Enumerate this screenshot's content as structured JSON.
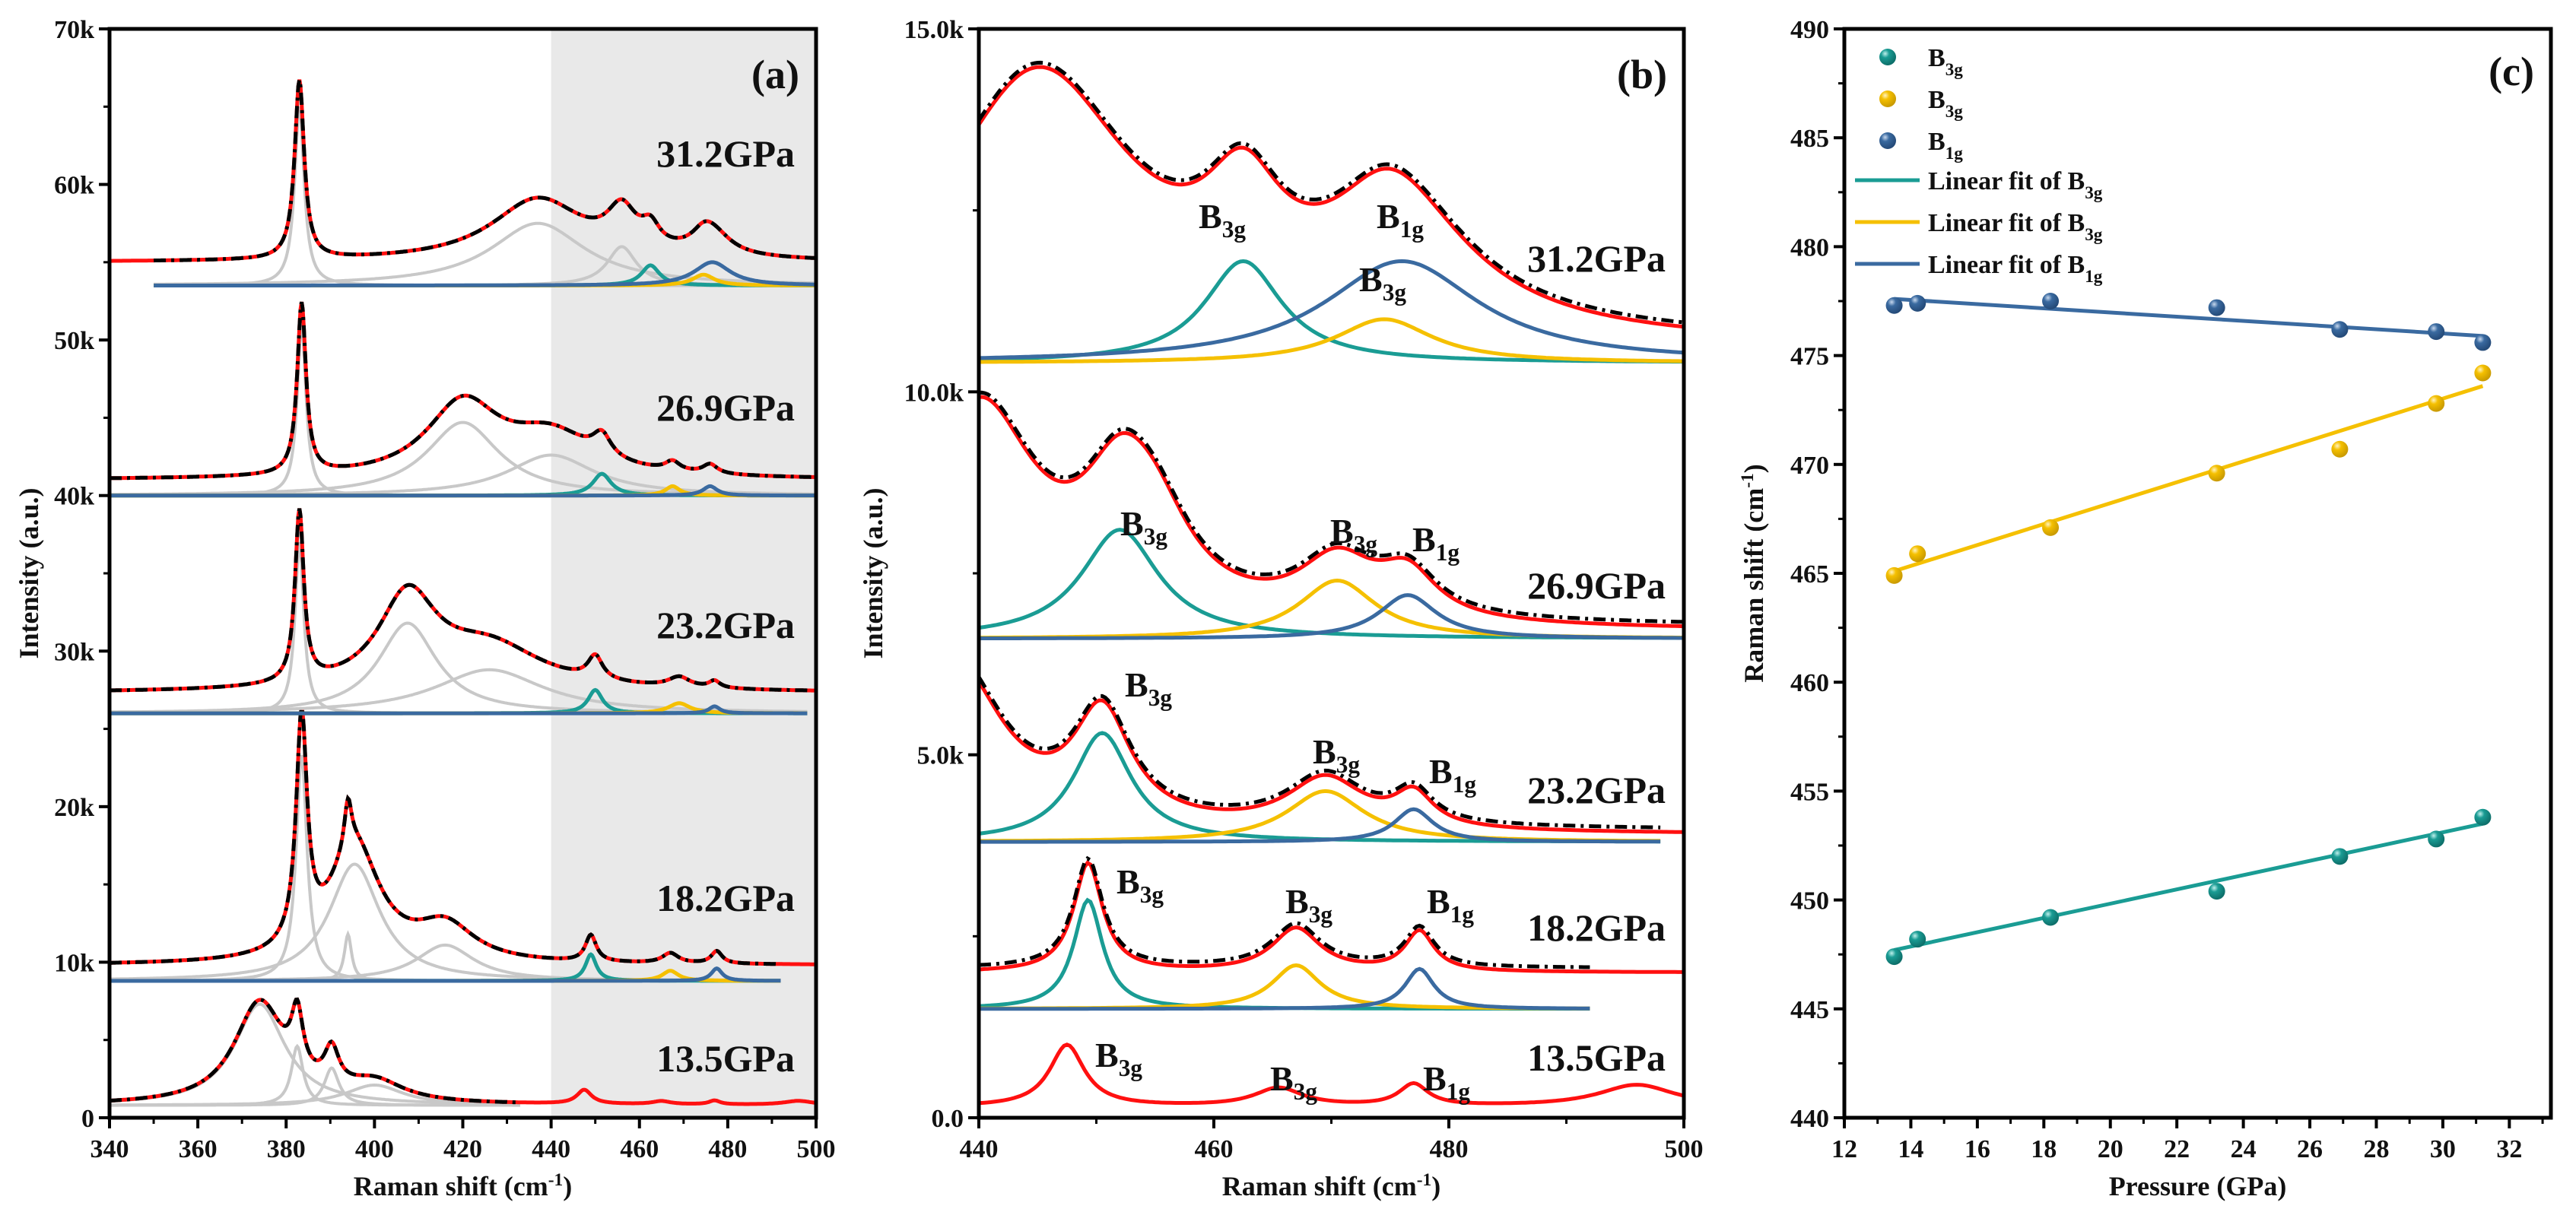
{
  "colors": {
    "raman": "#c8c8c8",
    "B3g-1": "#1a9c94",
    "B3g-2": "#f5c000",
    "B1g": "#3a6aa0",
    "data": "#ff1010",
    "fit": "#000000",
    "shade": "#e9e9e9"
  },
  "chart_data": [
    {
      "id": "a",
      "type": "line",
      "panel_label": "(a)",
      "xlabel": "Raman shift (cm",
      "xlabel_sup": "-1",
      "xlabel_end": ")",
      "ylabel": "Intensity (a.u.)",
      "xlim": [
        340,
        500
      ],
      "ylim": [
        0,
        70000
      ],
      "xticks": [
        340,
        360,
        380,
        400,
        420,
        440,
        460,
        480,
        500
      ],
      "xtick_labels": [
        "340",
        "360",
        "380",
        "400",
        "420",
        "440",
        "460",
        "480",
        "500"
      ],
      "yticks": [
        0,
        10000,
        20000,
        30000,
        40000,
        50000,
        60000,
        70000
      ],
      "ytick_labels": [
        "0",
        "10k",
        "20k",
        "30k",
        "40k",
        "50k",
        "60k",
        "70k"
      ],
      "shaded_region": [
        440,
        500
      ],
      "spectra": [
        {
          "pressure": "13.5GPa",
          "baseline": 800,
          "offset": 0,
          "fit_range": [
            340,
            433
          ],
          "peaks": [
            {
              "c": 374,
              "a": 6500,
              "w": 7,
              "mode": "raman"
            },
            {
              "c": 382.5,
              "a": 3800,
              "w": 1.6,
              "mode": "raman"
            },
            {
              "c": 390.3,
              "a": 2400,
              "w": 2,
              "mode": "raman"
            },
            {
              "c": 400,
              "a": 1300,
              "w": 8,
              "mode": "raman"
            },
            {
              "c": 447.5,
              "a": 900,
              "w": 2,
              "mode": "hidden"
            },
            {
              "c": 465,
              "a": 200,
              "w": 2.5,
              "mode": "hidden"
            },
            {
              "c": 477,
              "a": 250,
              "w": 1.5,
              "mode": "hidden"
            },
            {
              "c": 496,
              "a": 250,
              "w": 4,
              "mode": "hidden"
            }
          ]
        },
        {
          "pressure": "18.2GPa",
          "baseline": 8800,
          "offset": 1000,
          "fit_range": [
            340,
            492
          ],
          "peaks": [
            {
              "c": 383.5,
              "a": 14500,
              "w": 1.5,
              "mode": "raman"
            },
            {
              "c": 394,
              "a": 3000,
              "w": 1,
              "mode": "raman"
            },
            {
              "c": 395.5,
              "a": 7500,
              "w": 7,
              "mode": "raman"
            },
            {
              "c": 416,
              "a": 2300,
              "w": 8,
              "mode": "raman"
            },
            {
              "c": 449,
              "a": 1700,
              "w": 1.5,
              "mode": "B3g-1"
            },
            {
              "c": 467,
              "a": 650,
              "w": 2.2,
              "mode": "B3g-2"
            },
            {
              "c": 477.5,
              "a": 800,
              "w": 1.5,
              "mode": "B1g"
            }
          ]
        },
        {
          "pressure": "23.2GPa",
          "baseline": 26000,
          "offset": 1300,
          "fit_range": [
            340,
            498
          ],
          "peaks": [
            {
              "c": 383,
              "a": 11000,
              "w": 1.2,
              "mode": "raman"
            },
            {
              "c": 407.5,
              "a": 5800,
              "w": 8,
              "mode": "raman"
            },
            {
              "c": 426,
              "a": 2800,
              "w": 15,
              "mode": "raman"
            },
            {
              "c": 450,
              "a": 1500,
              "w": 2,
              "mode": "B3g-1"
            },
            {
              "c": 469,
              "a": 650,
              "w": 3,
              "mode": "B3g-2"
            },
            {
              "c": 477,
              "a": 450,
              "w": 1.5,
              "mode": "B1g"
            }
          ]
        },
        {
          "pressure": "26.9GPa",
          "baseline": 40000,
          "offset": 1000,
          "fit_range": [
            340,
            500
          ],
          "peaks": [
            {
              "c": 383.5,
              "a": 11000,
              "w": 1.2,
              "mode": "raman"
            },
            {
              "c": 420,
              "a": 4700,
              "w": 10,
              "mode": "raman"
            },
            {
              "c": 440,
              "a": 2600,
              "w": 12,
              "mode": "raman"
            },
            {
              "c": 451.5,
              "a": 1400,
              "w": 2.5,
              "mode": "B3g-1"
            },
            {
              "c": 467.5,
              "a": 600,
              "w": 2,
              "mode": "B3g-2"
            },
            {
              "c": 476,
              "a": 600,
              "w": 2,
              "mode": "B1g"
            }
          ]
        },
        {
          "pressure": "31.2GPa",
          "baseline": 53500,
          "offset": 1500,
          "fit_range": [
            350,
            500
          ],
          "peaks": [
            {
              "c": 383,
              "a": 11500,
              "w": 1.3,
              "mode": "raman"
            },
            {
              "c": 437,
              "a": 4000,
              "w": 13,
              "mode": "raman"
            },
            {
              "c": 456,
              "a": 2500,
              "w": 4,
              "mode": "raman"
            },
            {
              "c": 462.5,
              "a": 1300,
              "w": 2.5,
              "mode": "B3g-1"
            },
            {
              "c": 474.5,
              "a": 700,
              "w": 3,
              "mode": "B3g-2"
            },
            {
              "c": 476.5,
              "a": 1500,
              "w": 5,
              "mode": "B1g"
            }
          ]
        }
      ]
    },
    {
      "id": "b",
      "type": "line",
      "panel_label": "(b)",
      "xlabel": "Raman shift (cm",
      "xlabel_sup": "-1",
      "xlabel_end": ")",
      "ylabel": "Intensity (a.u.)",
      "xlim": [
        440,
        500
      ],
      "ylim": [
        0,
        15000
      ],
      "xticks": [
        440,
        460,
        480,
        500
      ],
      "xtick_labels": [
        "440",
        "460",
        "480",
        "500"
      ],
      "yticks": [
        0,
        5000,
        10000,
        15000
      ],
      "ytick_labels": [
        "0.0",
        "5.0k",
        "10.0k",
        "15.0k"
      ],
      "spectra": [
        {
          "pressure": "13.5GPa",
          "baseline": 150,
          "offset": 0,
          "fit_range": null,
          "peaks": [
            {
              "c": 447.5,
              "a": 850,
              "w": 1.8,
              "mode": "hidden"
            },
            {
              "c": 465.5,
              "a": 250,
              "w": 2.5,
              "mode": "hidden"
            },
            {
              "c": 477,
              "a": 300,
              "w": 1.5,
              "mode": "hidden"
            },
            {
              "c": 496,
              "a": 300,
              "w": 4,
              "mode": "hidden"
            }
          ],
          "labels": [
            {
              "main": "B",
              "sub": "3g"
            },
            {
              "main": "B",
              "sub": "3g"
            },
            {
              "main": "B",
              "sub": "1g"
            }
          ]
        },
        {
          "pressure": "18.2GPa",
          "baseline": 1500,
          "offset": 500,
          "fit_range": [
            440,
            492
          ],
          "peaks": [
            {
              "c": 449.3,
              "a": 1500,
              "w": 1.5,
              "mode": "B3g-1"
            },
            {
              "c": 467,
              "a": 600,
              "w": 2.5,
              "mode": "B3g-2"
            },
            {
              "c": 477.5,
              "a": 550,
              "w": 1.5,
              "mode": "B1g"
            }
          ],
          "labels": [
            {
              "main": "B",
              "sub": "3g"
            },
            {
              "main": "B",
              "sub": "3g"
            },
            {
              "main": "B",
              "sub": "1g"
            }
          ]
        },
        {
          "pressure": "23.2GPa",
          "baseline": 3800,
          "offset": 100,
          "fit_range": [
            440,
            498
          ],
          "peaks": [
            {
              "c": 450.5,
              "a": 1500,
              "w": 3,
              "mode": "B3g-1"
            },
            {
              "c": 469.5,
              "a": 700,
              "w": 4,
              "mode": "B3g-2"
            },
            {
              "c": 477,
              "a": 450,
              "w": 2,
              "mode": "B1g"
            },
            {
              "c": 438,
              "a": 2300,
              "w": 5,
              "mode": "hidden"
            }
          ],
          "labels": [
            {
              "main": "B",
              "sub": "3g"
            },
            {
              "main": "B",
              "sub": "3g"
            },
            {
              "main": "B",
              "sub": "1g"
            }
          ]
        },
        {
          "pressure": "26.9GPa",
          "baseline": 6600,
          "offset": 100,
          "fit_range": [
            440,
            500
          ],
          "peaks": [
            {
              "c": 452,
              "a": 1500,
              "w": 4,
              "mode": "B3g-1"
            },
            {
              "c": 470.5,
              "a": 800,
              "w": 4,
              "mode": "B3g-2"
            },
            {
              "c": 476.5,
              "a": 600,
              "w": 3,
              "mode": "B1g"
            },
            {
              "c": 440,
              "a": 3000,
              "w": 6,
              "mode": "hidden"
            },
            {
              "c": 455,
              "a": 900,
              "w": 4,
              "mode": "hidden"
            }
          ],
          "labels": [
            {
              "main": "B",
              "sub": "3g"
            },
            {
              "main": "B",
              "sub": "3g"
            },
            {
              "main": "B",
              "sub": "1g"
            }
          ]
        },
        {
          "pressure": "31.2GPa",
          "baseline": 10400,
          "offset": 200,
          "fit_range": [
            440,
            500
          ],
          "peaks": [
            {
              "c": 462.5,
              "a": 1400,
              "w": 4,
              "mode": "B3g-1"
            },
            {
              "c": 474.5,
              "a": 600,
              "w": 5,
              "mode": "B3g-2"
            },
            {
              "c": 476,
              "a": 1400,
              "w": 8,
              "mode": "B1g"
            },
            {
              "c": 445,
              "a": 3700,
              "w": 10,
              "mode": "hidden"
            }
          ],
          "labels": [
            {
              "main": "B",
              "sub": "3g"
            },
            {
              "main": "B",
              "sub": "1g"
            },
            {
              "main": "B",
              "sub": "3g"
            }
          ]
        }
      ]
    },
    {
      "id": "c",
      "type": "scatter",
      "panel_label": "(c)",
      "xlabel": "Pressure (GPa)",
      "ylabel": "Raman shift (cm",
      "ylabel_sup": "-1",
      "ylabel_end": ")",
      "xlim": [
        12,
        33.25
      ],
      "ylim": [
        440,
        490
      ],
      "xticks": [
        12,
        14,
        16,
        18,
        20,
        22,
        24,
        26,
        28,
        30,
        32
      ],
      "xtick_labels": [
        "12",
        "14",
        "16",
        "18",
        "20",
        "22",
        "24",
        "26",
        "28",
        "30",
        "32"
      ],
      "yticks": [
        440,
        445,
        450,
        455,
        460,
        465,
        470,
        475,
        480,
        485,
        490
      ],
      "ytick_labels": [
        "440",
        "445",
        "450",
        "455",
        "460",
        "465",
        "470",
        "475",
        "480",
        "485",
        "490"
      ],
      "x": [
        13.5,
        14.2,
        18.2,
        23.2,
        26.9,
        29.8,
        31.2
      ],
      "series": [
        {
          "name": "B",
          "sub": "3g",
          "mode": "B3g-1",
          "values": [
            447.4,
            448.2,
            449.2,
            450.4,
            452.0,
            452.8,
            453.8
          ],
          "fit": [
            447.7,
            453.5
          ]
        },
        {
          "name": "B",
          "sub": "3g",
          "mode": "B3g-2",
          "values": [
            464.9,
            465.9,
            467.1,
            469.6,
            470.7,
            472.8,
            474.2
          ],
          "fit": [
            465.1,
            473.6
          ]
        },
        {
          "name": "B",
          "sub": "1g",
          "mode": "B1g",
          "values": [
            477.3,
            477.4,
            477.5,
            477.2,
            476.2,
            476.1,
            475.6
          ],
          "fit": [
            477.6,
            475.9
          ]
        }
      ],
      "fit_label": "Linear fit of B",
      "legend_position": "top-left"
    }
  ]
}
